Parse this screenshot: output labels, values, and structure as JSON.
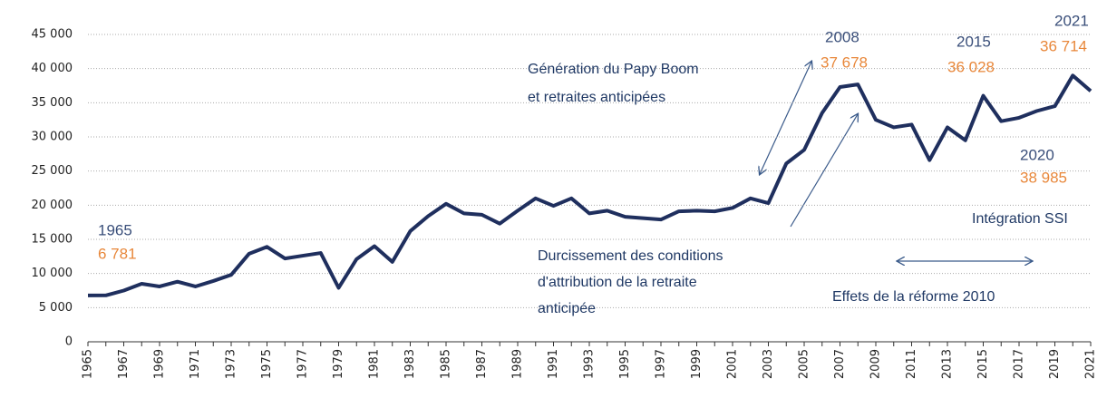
{
  "chart_data": {
    "type": "line",
    "categories": [
      "1965",
      null,
      "1967",
      null,
      "1969",
      null,
      "1971",
      null,
      "1973",
      null,
      "1975",
      null,
      "1977",
      null,
      "1979",
      null,
      "1981",
      null,
      "1983",
      null,
      "1985",
      null,
      "1987",
      null,
      "1989",
      null,
      "1991",
      null,
      "1993",
      null,
      "1995",
      null,
      "1997",
      null,
      "1999",
      null,
      "2001",
      null,
      "2003",
      null,
      "2005",
      null,
      "2007",
      null,
      "2009",
      null,
      "2011",
      null,
      "2013",
      null,
      "2015",
      null,
      "2017",
      null,
      "2019",
      null,
      "2021"
    ],
    "series": [
      {
        "color": "#1f2f5e",
        "values": [
          6781,
          6800,
          7500,
          8500,
          8100,
          8800,
          8100,
          8900,
          9800,
          12900,
          13900,
          12200,
          12600,
          13000,
          7900,
          12100,
          14000,
          11700,
          16200,
          18400,
          20200,
          18800,
          18600,
          17300,
          19200,
          21000,
          19900,
          21000,
          18800,
          19200,
          18300,
          18100,
          17900,
          19100,
          19200,
          19100,
          19600,
          21000,
          20300,
          26100,
          28100,
          33500,
          37300,
          37678,
          32500,
          31400,
          31800,
          26600,
          31400,
          29500,
          36028,
          32300,
          32800,
          33800,
          34500,
          38985,
          36714
        ],
        "value_labels": [
          "6 781",
          null,
          null,
          null,
          null,
          null,
          null,
          null,
          null,
          null,
          null,
          null,
          null,
          null,
          null,
          null,
          null,
          null,
          null,
          null,
          null,
          null,
          null,
          null,
          null,
          null,
          null,
          null,
          null,
          null,
          null,
          null,
          null,
          null,
          null,
          null,
          null,
          null,
          null,
          null,
          null,
          null,
          null,
          "37 678",
          null,
          null,
          null,
          null,
          null,
          null,
          "36 028",
          null,
          null,
          null,
          null,
          "38 985",
          "36 714"
        ]
      }
    ],
    "ylim": [
      0,
      45000
    ],
    "yticks": [
      0,
      {
        "value": 5000,
        "label": "5 000"
      },
      {
        "value": 10000,
        "label": "10 000"
      },
      {
        "value": 15000,
        "label": "15 000"
      },
      {
        "value": 20000,
        "label": "20 000"
      },
      {
        "value": 25000,
        "label": "25 000"
      },
      {
        "value": 30000,
        "label": "30 000"
      },
      {
        "value": 35000,
        "label": "35 000"
      },
      {
        "value": 40000,
        "label": "40 000"
      },
      {
        "value": 45000,
        "label": "45 000"
      }
    ],
    "grid": true,
    "annotations": [
      "1965",
      "2008",
      "2015",
      "2020",
      "2021",
      "Génération du Papy Boom",
      "et retraites anticipées",
      "Durcissement des conditions",
      "d'attribution de la retraite",
      "anticipée",
      "Intégration SSI",
      "Effets de la réforme 2010"
    ]
  }
}
